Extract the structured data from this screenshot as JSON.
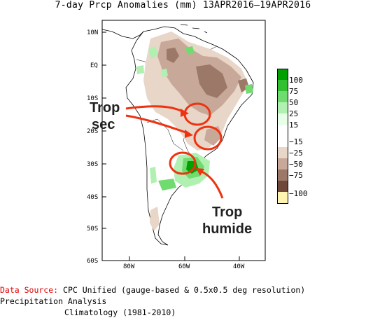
{
  "title": "7-day Prcp Anomalies (mm) 13APR2016–19APR2016",
  "map": {
    "lat_labels": [
      "10N",
      "EQ",
      "10S",
      "20S",
      "30S",
      "40S",
      "50S",
      "60S"
    ],
    "lon_labels": [
      "80W",
      "60W",
      "40W"
    ]
  },
  "annotations": {
    "dry_line1": "Trop",
    "dry_line2": "sec",
    "wet_line1": "Trop",
    "wet_line2": "humide",
    "color": "#ee3311"
  },
  "legend": {
    "labels": [
      "100",
      "75",
      "50",
      "25",
      "15",
      "−15",
      "−25",
      "−50",
      "−75",
      "−100"
    ],
    "colors": [
      "#00a000",
      "#30c030",
      "#70dc70",
      "#b0f0b0",
      "#e6ffe6",
      "#ffffff",
      "#e8d6c8",
      "#c8a898",
      "#9c7868",
      "#70483a",
      "#fff4b0"
    ]
  },
  "source": {
    "label": "Data Source:",
    "line1": "CPC Unified (gauge-based & 0.5x0.5 deg resolution) Precipitation Analysis",
    "line2": "Climatology (1981-2010)"
  }
}
